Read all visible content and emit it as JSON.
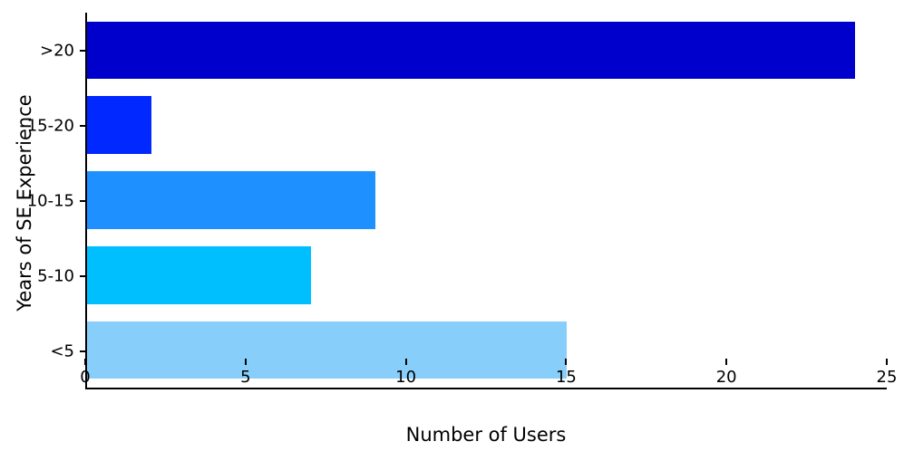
{
  "chart_data": {
    "type": "bar",
    "orientation": "horizontal",
    "title": "",
    "xlabel": "Number of Users",
    "ylabel": "Years of SE Experience",
    "categories": [
      ">20",
      "15-20",
      "10-15",
      "5-10",
      "<5"
    ],
    "values": [
      24,
      2,
      9,
      7,
      15
    ],
    "colors": [
      "#0000cd",
      "#0028ff",
      "#1e90ff",
      "#00bfff",
      "#87cefa"
    ],
    "xlim": [
      0,
      25
    ],
    "xticks": [
      0,
      5,
      10,
      15,
      20,
      25
    ],
    "grid": false,
    "legend": "none"
  }
}
